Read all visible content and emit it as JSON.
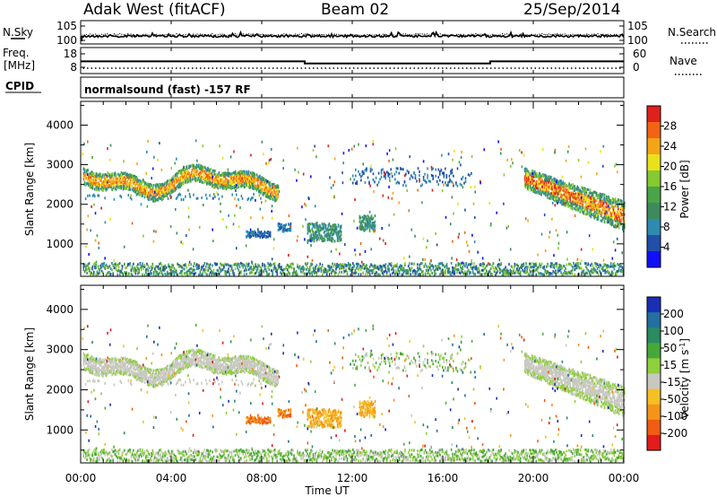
{
  "header": {
    "station": "Adak West (fitACF)",
    "beam": "Beam 02",
    "date": "25/Sep/2014"
  },
  "side_labels": {
    "nsky": "N.Sky",
    "nsearch": "N.Search",
    "freq_line1": "Freq.",
    "freq_line2": "[MHz]",
    "nave": "Nave",
    "cpid": "CPID"
  },
  "cpid_text": "normalsound (fast) -157 RF",
  "chart_data": [
    {
      "type": "line",
      "panel": "noise",
      "left_ticks": [
        "10^5",
        "10^0"
      ],
      "right_ticks": [
        "10^5",
        "10^0"
      ],
      "series": [
        {
          "name": "N.Sky",
          "style": "solid"
        },
        {
          "name": "N.Search",
          "style": "dotted"
        }
      ],
      "x_range_hours": [
        0,
        24
      ]
    },
    {
      "type": "line",
      "panel": "frequency-nave",
      "left_ticks": [
        "18",
        "8"
      ],
      "right_ticks": [
        "60",
        "0"
      ],
      "freq_ylim": [
        8,
        18
      ],
      "nave_ylim": [
        0,
        60
      ],
      "freq_series": {
        "name": "Freq.",
        "points": [
          [
            0,
            12.4
          ],
          [
            9.9,
            12.4
          ],
          [
            9.9,
            10.8
          ],
          [
            18.1,
            10.8
          ],
          [
            18.1,
            12.4
          ],
          [
            24,
            12.4
          ]
        ]
      },
      "nave_series": {
        "name": "Nave",
        "value": 0
      }
    },
    {
      "type": "heatmap",
      "panel": "power",
      "ylabel": "Slant Range [km]",
      "y_ticks": [
        1000,
        2000,
        3000,
        4000
      ],
      "ylim": [
        180,
        4600
      ],
      "colorbar_label": "Power [dB]",
      "colorbar_ticks": [
        4,
        8,
        12,
        16,
        20,
        24,
        28
      ],
      "colorbar_range": [
        0,
        32
      ],
      "colors": [
        "#1010ff",
        "#234faa",
        "#2d8bb0",
        "#3e8a5e",
        "#49a548",
        "#86c930",
        "#e8e21b",
        "#f5a418",
        "#f26414",
        "#e0201d"
      ]
    },
    {
      "type": "heatmap",
      "panel": "velocity",
      "ylabel": "Slant Range [km]",
      "y_ticks": [
        1000,
        2000,
        3000,
        4000
      ],
      "ylim": [
        180,
        4600
      ],
      "colorbar_label": "Velocity [m s^-1]",
      "colorbar_ticks": [
        "200",
        "100",
        "50",
        "15",
        "-15",
        "-50",
        "-100",
        "-200"
      ],
      "colors": [
        "#1b2fb5",
        "#226fa0",
        "#2a8a60",
        "#47a83a",
        "#8fcf3c",
        "#c8c8c0",
        "#f5c026",
        "#f4951a",
        "#f05c12",
        "#e31b1b"
      ]
    }
  ],
  "x_axis": {
    "ticks": [
      "00:00",
      "04:00",
      "08:00",
      "12:00",
      "16:00",
      "20:00",
      "00:00"
    ],
    "label": "Time UT"
  }
}
